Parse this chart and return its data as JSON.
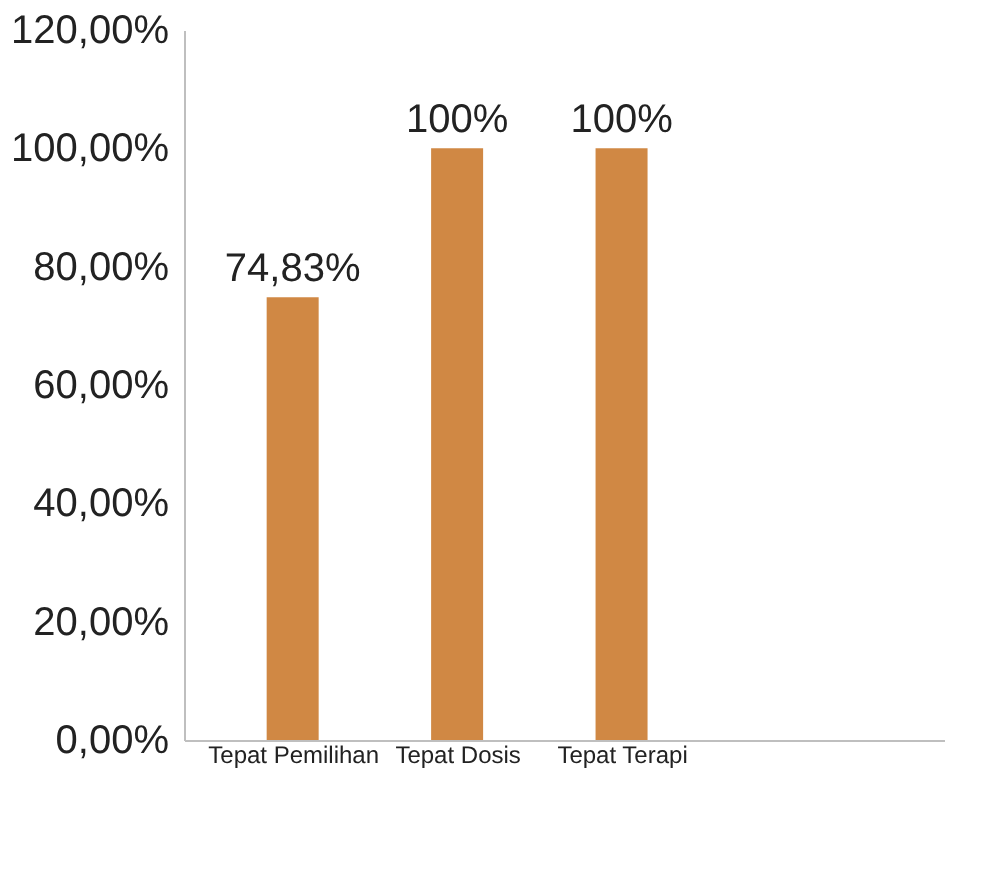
{
  "chart_data": {
    "type": "bar",
    "categories": [
      "Tepat Pemilihan",
      "Tepat Dosis",
      "Tepat Terapi"
    ],
    "values": [
      74.83,
      100,
      100
    ],
    "color": "#d08844",
    "value_labels": [
      "74,83%",
      "100%",
      "100%"
    ],
    "ylim": [
      0,
      120
    ],
    "yticks": [
      {
        "value": 0,
        "label": "0,00%"
      },
      {
        "value": 20,
        "label": "20,00%"
      },
      {
        "value": 40,
        "label": "40,00%"
      },
      {
        "value": 60,
        "label": "60,00%"
      },
      {
        "value": 80,
        "label": "80,00%"
      },
      {
        "value": 100,
        "label": "100,00%"
      },
      {
        "value": 120,
        "label": "120,00%"
      }
    ],
    "grid": false
  }
}
